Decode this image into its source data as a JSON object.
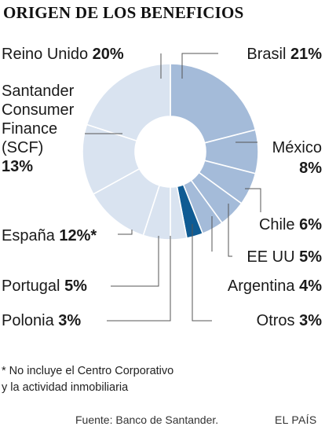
{
  "header": {
    "title": "ORIGEN DE LOS BENEFICIOS"
  },
  "chart_data": {
    "type": "pie",
    "variant": "donut",
    "title": "ORIGEN DE LOS BENEFICIOS",
    "unit": "%",
    "slices": [
      {
        "label": "Brasil",
        "value": 21,
        "value_text": "21%",
        "color": "#a4bbd9"
      },
      {
        "label": "México",
        "value": 8,
        "value_text": "8%",
        "color": "#a4bbd9"
      },
      {
        "label": "Chile",
        "value": 6,
        "value_text": "6%",
        "color": "#a4bbd9"
      },
      {
        "label": "EE UU",
        "value": 5,
        "value_text": "5%",
        "color": "#a4bbd9"
      },
      {
        "label": "Argentina",
        "value": 4,
        "value_text": "4%",
        "color": "#a4bbd9"
      },
      {
        "label": "Otros",
        "value": 3,
        "value_text": "3%",
        "color": "#0f5b93"
      },
      {
        "label": "Polonia",
        "value": 3,
        "value_text": "3%",
        "color": "#d9e3f0"
      },
      {
        "label": "Portugal",
        "value": 5,
        "value_text": "5%",
        "color": "#d9e3f0"
      },
      {
        "label": "España",
        "value": 12,
        "value_text": "12%*",
        "color": "#d9e3f0"
      },
      {
        "label": "Santander Consumer Finance (SCF)",
        "value": 13,
        "value_text": "13%",
        "color": "#d9e3f0",
        "label_lines": [
          "Santander",
          "Consumer",
          "Finance",
          "(SCF)"
        ]
      },
      {
        "label": "Reino Unido",
        "value": 20,
        "value_text": "20%",
        "color": "#d9e3f0"
      }
    ]
  },
  "footnote": {
    "line1": "* No incluye el Centro Corporativo",
    "line2": "y la actividad inmobiliaria"
  },
  "source": "Fuente: Banco de Santander.",
  "brand": "EL PAÍS"
}
